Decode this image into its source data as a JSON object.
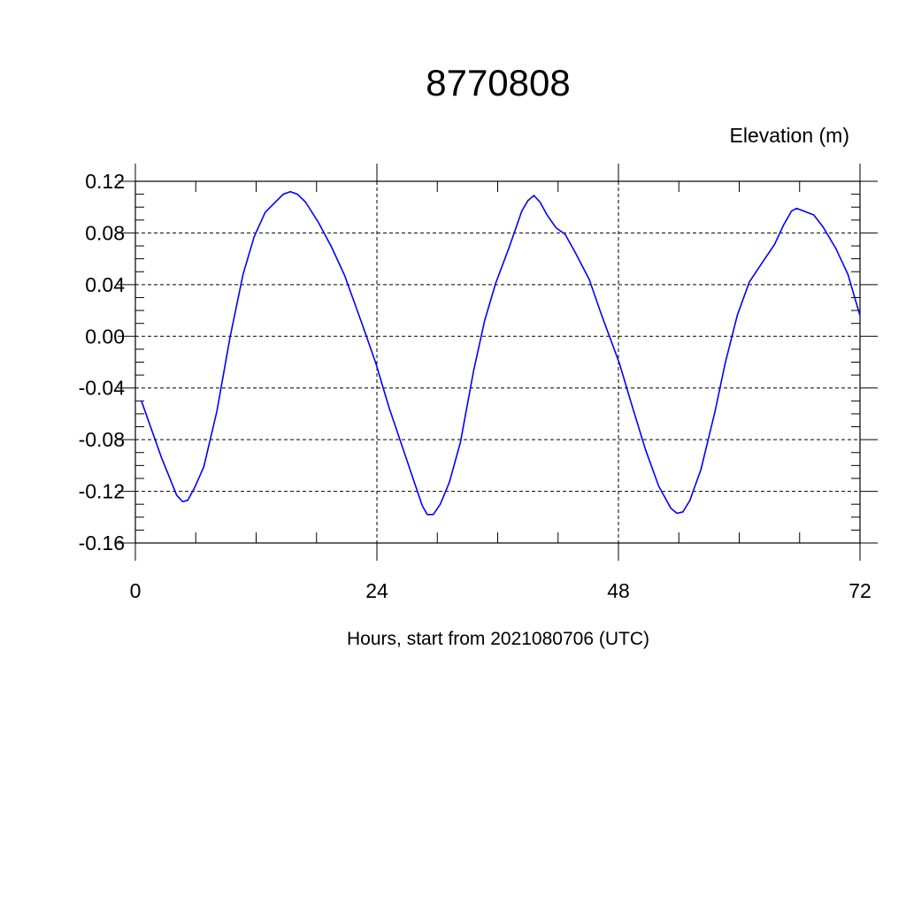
{
  "chart_data": {
    "type": "line",
    "title": "8770808",
    "y_label": "Elevation (m)",
    "x_label": "Hours, start from 2021080706 (UTC)",
    "x": [
      0.6,
      2.6,
      4.1,
      4.7,
      5.2,
      5.9,
      6.8,
      8.1,
      9.4,
      10.7,
      11.8,
      12.9,
      13.8,
      14.7,
      15.4,
      16.1,
      16.9,
      18.2,
      19.5,
      20.8,
      22.6,
      23.9,
      25.2,
      27.2,
      28.5,
      29.0,
      29.6,
      30.3,
      31.2,
      32.3,
      33.6,
      34.7,
      35.8,
      37.1,
      38.4,
      39.0,
      39.6,
      40.2,
      40.9,
      41.8,
      42.7,
      43.7,
      45.1,
      46.3,
      48.1,
      49.4,
      50.7,
      52.0,
      53.2,
      53.8,
      54.4,
      55.1,
      56.2,
      57.6,
      58.6,
      59.8,
      61.0,
      62.2,
      63.5,
      64.4,
      65.2,
      65.7,
      66.4,
      67.4,
      68.3,
      69.6,
      70.8,
      72.0
    ],
    "series": [
      {
        "color": "#0000ff",
        "values": [
          -0.05,
          -0.094,
          -0.123,
          -0.128,
          -0.127,
          -0.117,
          -0.101,
          -0.058,
          -0.001,
          0.048,
          0.077,
          0.096,
          0.103,
          0.11,
          0.112,
          0.11,
          0.104,
          0.088,
          0.069,
          0.047,
          0.008,
          -0.021,
          -0.055,
          -0.101,
          -0.131,
          -0.138,
          -0.138,
          -0.13,
          -0.113,
          -0.082,
          -0.027,
          0.012,
          0.041,
          0.068,
          0.097,
          0.105,
          0.109,
          0.104,
          0.094,
          0.084,
          0.079,
          0.065,
          0.044,
          0.017,
          -0.021,
          -0.055,
          -0.088,
          -0.116,
          -0.133,
          -0.137,
          -0.136,
          -0.127,
          -0.103,
          -0.058,
          -0.021,
          0.016,
          0.042,
          0.056,
          0.071,
          0.086,
          0.097,
          0.099,
          0.097,
          0.094,
          0.085,
          0.068,
          0.048,
          0.016
        ]
      }
    ],
    "xlim": [
      0,
      72
    ],
    "xticks": [
      0,
      24,
      48,
      72
    ],
    "ylim": [
      -0.16,
      0.12
    ],
    "yticks": [
      -0.16,
      -0.12,
      -0.08,
      -0.04,
      {
        "value": 0,
        "label": "0.00"
      },
      0.04,
      0.08,
      0.12
    ],
    "grid": true
  }
}
